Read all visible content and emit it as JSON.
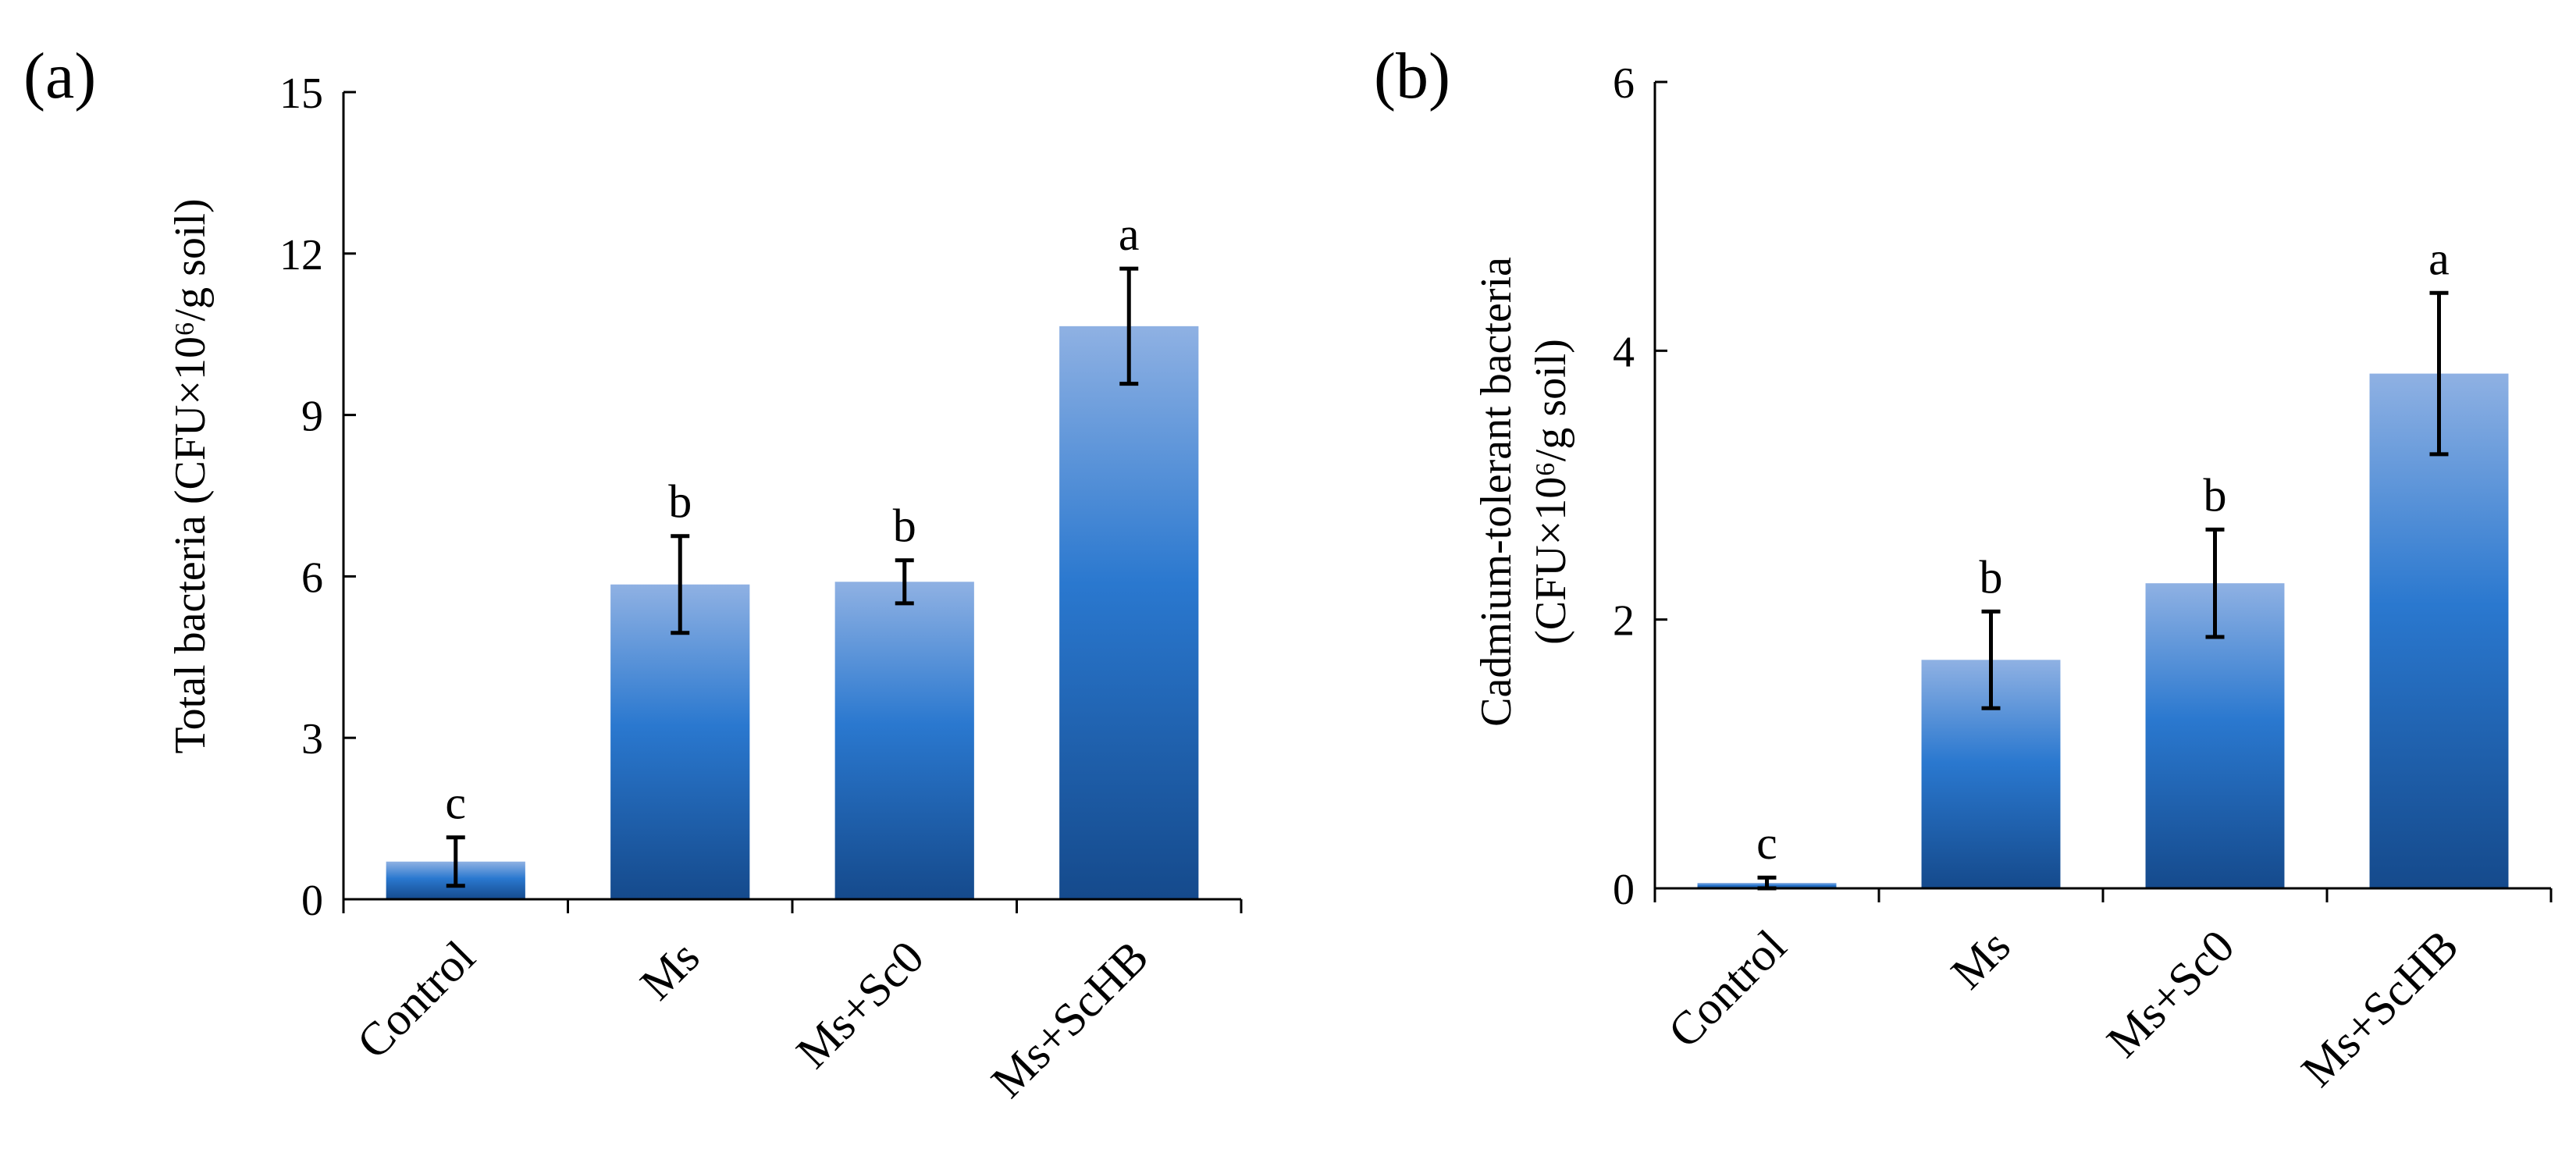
{
  "chart_data": [
    {
      "panel": "(a)",
      "type": "bar",
      "title": "",
      "xlabel": "",
      "ylabel": "Total bacteria (CFU×10⁶/g soil)",
      "ylim": [
        0,
        15
      ],
      "yticks": [
        0,
        3,
        6,
        9,
        12,
        15
      ],
      "categories": [
        "Control",
        "Ms",
        "Ms+Sc0",
        "Ms+ScHB"
      ],
      "values": [
        0.7,
        5.85,
        5.9,
        10.65
      ],
      "errors": [
        0.45,
        0.9,
        0.4,
        1.07
      ],
      "significance": [
        "c",
        "b",
        "b",
        "a"
      ],
      "grid": false,
      "legend": "none"
    },
    {
      "panel": "(b)",
      "type": "bar",
      "title": "",
      "xlabel": "",
      "ylabel_line1": "Cadmium-tolerant bacteria",
      "ylabel_line2": "(CFU×10⁶/g soil)",
      "ylim": [
        0,
        6
      ],
      "yticks": [
        0,
        2,
        4,
        6
      ],
      "categories": [
        "Control",
        "Ms",
        "Ms+Sc0",
        "Ms+ScHB"
      ],
      "values": [
        0.04,
        1.7,
        2.27,
        3.83
      ],
      "errors": [
        0.04,
        0.36,
        0.4,
        0.6
      ],
      "significance": [
        "c",
        "b",
        "b",
        "a"
      ],
      "grid": false,
      "legend": "none"
    }
  ],
  "colors": {
    "bar_top": "#8fb1e3",
    "bar_mid": "#2a78cf",
    "bar_bottom": "#154a8c",
    "axis": "#000000"
  }
}
